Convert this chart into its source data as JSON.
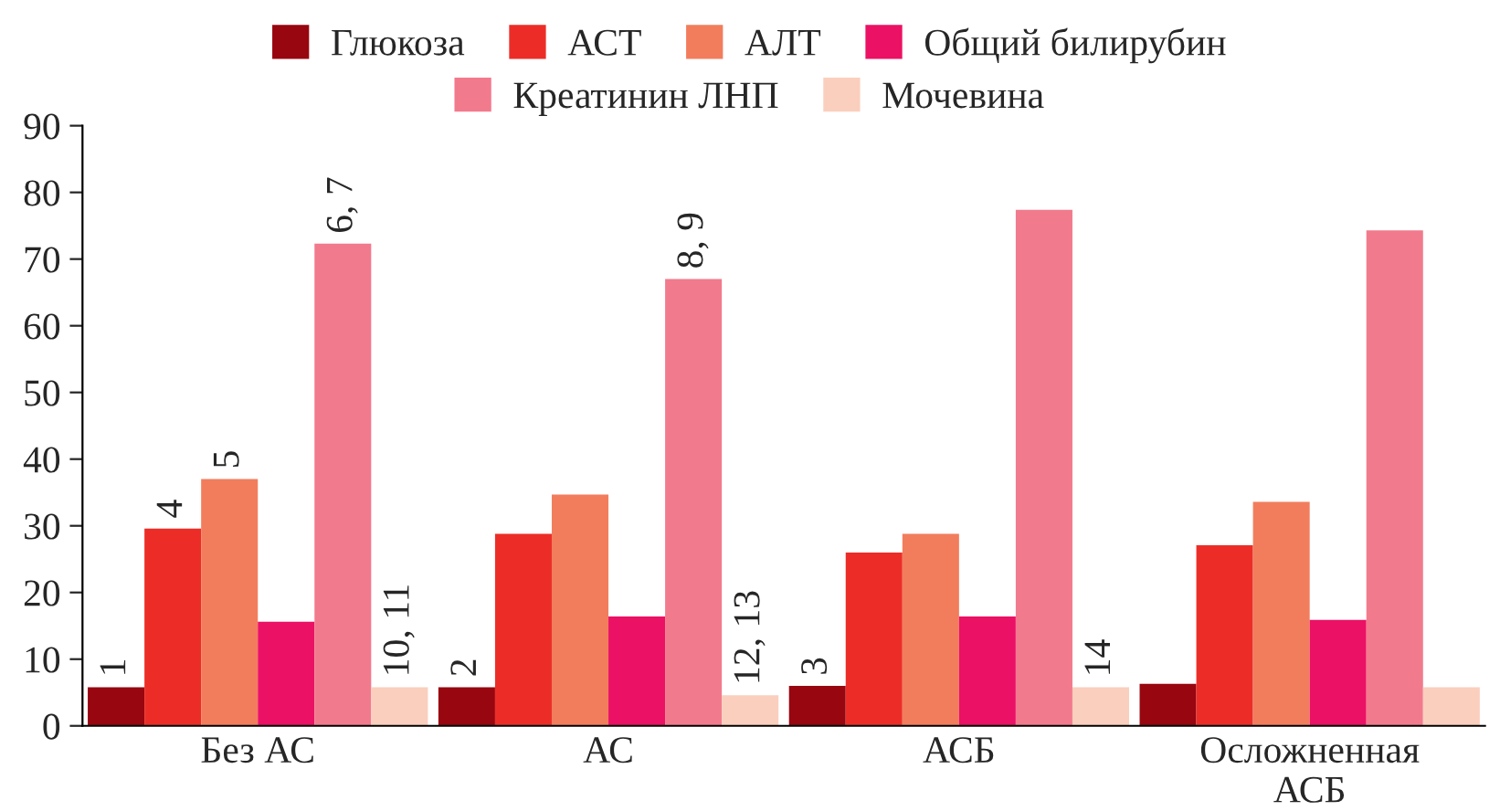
{
  "chart_data": {
    "type": "bar",
    "categories": [
      "Без АС",
      "АС",
      "АСБ",
      "Осложненная АСБ"
    ],
    "series": [
      {
        "name": "Глюкоза",
        "color": "#980610",
        "values": [
          5.8,
          5.8,
          6.0,
          6.3
        ]
      },
      {
        "name": "АСТ",
        "color": "#ec2d27",
        "values": [
          29.6,
          28.8,
          26.0,
          27.1
        ]
      },
      {
        "name": "АЛТ",
        "color": "#f27d5c",
        "values": [
          37.0,
          34.7,
          28.8,
          33.6
        ]
      },
      {
        "name": "Общий билирубин",
        "color": "#eb1164",
        "values": [
          15.6,
          16.4,
          16.4,
          15.9
        ]
      },
      {
        "name": "Креатинин ЛНП",
        "color": "#f27a8d",
        "values": [
          72.3,
          67.0,
          77.4,
          74.3
        ]
      },
      {
        "name": "Мочевина",
        "color": "#facfbd",
        "values": [
          5.8,
          4.6,
          5.8,
          5.8
        ]
      }
    ],
    "ylim": [
      0,
      90
    ],
    "yticks": [
      0,
      10,
      20,
      30,
      40,
      50,
      60,
      70,
      80,
      90
    ],
    "grid": false,
    "legend": "top",
    "annotations": [
      "1",
      "4",
      "5",
      "6, 7",
      "10, 11",
      "2",
      "8, 9",
      "12, 13",
      "3",
      "14"
    ]
  }
}
